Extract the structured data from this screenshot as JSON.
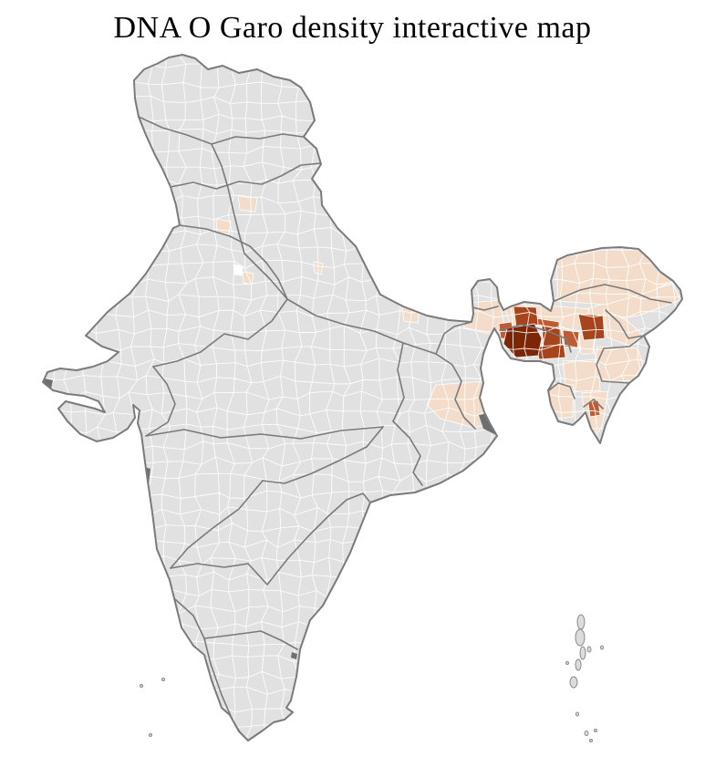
{
  "title": "DNA O Garo density interactive map",
  "map": {
    "name": "india-district-choropleth",
    "background": "#ffffff",
    "basemap": {
      "land_fill": "#e1e1e1",
      "district_border": "#ffffff",
      "state_border": "#7a7a7a",
      "outline": "#7a7a7a",
      "island_fill": "#dcdcdc",
      "island_stroke": "#8a8a8a"
    },
    "palette": {
      "none": "#e1e1e1",
      "na_white": "#fdfdfd",
      "very_low": "#f3ddca",
      "medium": "#bf5b31",
      "high": "#a6441c",
      "very_high": "#7c2606",
      "urban": "#6e6e6e"
    },
    "regions": [
      {
        "id": "north-bengal",
        "level": "very_low"
      },
      {
        "id": "assam-valley-west",
        "level": "very_low"
      },
      {
        "id": "assam-valley-east",
        "level": "very_low"
      },
      {
        "id": "arunachal-foothills",
        "level": "very_low"
      },
      {
        "id": "east-arunachal",
        "level": "none"
      },
      {
        "id": "nagaland",
        "level": "very_low"
      },
      {
        "id": "manipur-rim",
        "level": "very_low"
      },
      {
        "id": "imphal-valley",
        "level": "na_white"
      },
      {
        "id": "east-khasi-jaintia",
        "level": "very_low"
      },
      {
        "id": "cachar-barak-valley",
        "level": "very_low"
      },
      {
        "id": "mizoram",
        "level": "very_low"
      },
      {
        "id": "tripura",
        "level": "very_low"
      },
      {
        "id": "gangetic-west-bengal",
        "level": "very_low"
      },
      {
        "id": "haridwar",
        "level": "very_low"
      },
      {
        "id": "ambala",
        "level": "very_low"
      },
      {
        "id": "delhi-south",
        "level": "very_low"
      },
      {
        "id": "delhi-core",
        "level": "na_white"
      },
      {
        "id": "moradabad",
        "level": "very_low"
      },
      {
        "id": "lucknow",
        "level": "very_low"
      },
      {
        "id": "dhubri",
        "level": "medium"
      },
      {
        "id": "goalpara",
        "level": "medium"
      },
      {
        "id": "west-khasi-hills",
        "level": "medium"
      },
      {
        "id": "central-mizoram",
        "level": "medium"
      },
      {
        "id": "kokrajhar",
        "level": "high"
      },
      {
        "id": "east-garo-hills",
        "level": "high"
      },
      {
        "id": "south-garo-hills",
        "level": "high"
      },
      {
        "id": "karbi-anglong",
        "level": "high"
      },
      {
        "id": "west-garo-hills",
        "level": "very_high"
      },
      {
        "id": "kolkata-sundarbans",
        "level": "urban"
      },
      {
        "id": "dwarka-coast",
        "level": "urban"
      },
      {
        "id": "mumbai",
        "level": "urban"
      },
      {
        "id": "chennai",
        "level": "urban"
      }
    ]
  }
}
